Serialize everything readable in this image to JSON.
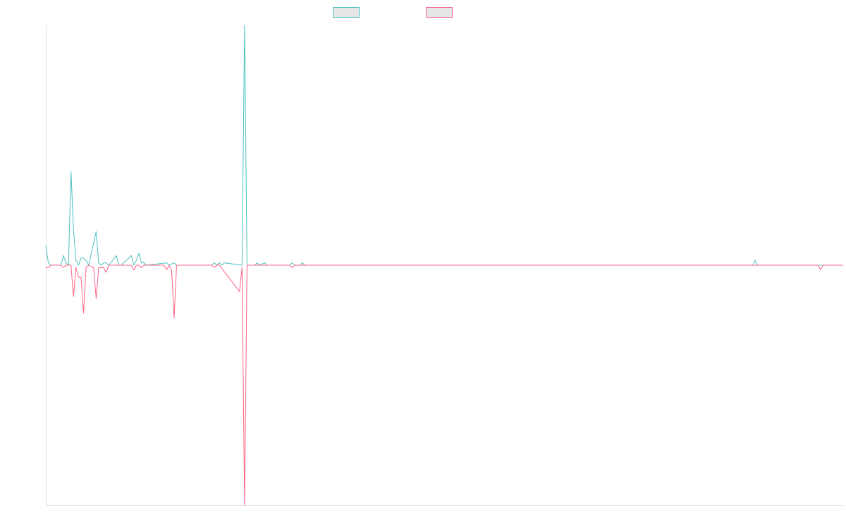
{
  "chart_data": {
    "type": "line",
    "title": "",
    "xlabel": "",
    "ylabel": "",
    "grid": false,
    "legend_position": "top-center",
    "ylim": [
      -100,
      100
    ],
    "colors": {
      "series_a": "#4bc0c0",
      "series_b": "#ff6384",
      "axis": "#e0e0e0",
      "legend_fill": "#e6e6e6"
    },
    "series": [
      {
        "color": "#4bc0c0",
        "points": [
          [
            0,
            8
          ],
          [
            1,
            1
          ],
          [
            2,
            0
          ],
          [
            6,
            0
          ],
          [
            7,
            4
          ],
          [
            8,
            1
          ],
          [
            9,
            0
          ],
          [
            10,
            39
          ],
          [
            11,
            15
          ],
          [
            12,
            2
          ],
          [
            13,
            0
          ],
          [
            14,
            3
          ],
          [
            15,
            3
          ],
          [
            16,
            2
          ],
          [
            17,
            0
          ],
          [
            20,
            14
          ],
          [
            21,
            1
          ],
          [
            22,
            0
          ],
          [
            23,
            1
          ],
          [
            24,
            1
          ],
          [
            25,
            0
          ],
          [
            28,
            4
          ],
          [
            29,
            0
          ],
          [
            30,
            0
          ],
          [
            34,
            4
          ],
          [
            35,
            0
          ],
          [
            36,
            2
          ],
          [
            37,
            5
          ],
          [
            38,
            1
          ],
          [
            39,
            1
          ],
          [
            40,
            0
          ],
          [
            48,
            1
          ],
          [
            49,
            0
          ],
          [
            51,
            1
          ],
          [
            52,
            0
          ],
          [
            58,
            0
          ],
          [
            62,
            0
          ],
          [
            66,
            0
          ],
          [
            67,
            1
          ],
          [
            68,
            0
          ],
          [
            69,
            1
          ],
          [
            70,
            0
          ],
          [
            71,
            1
          ],
          [
            78,
            0
          ],
          [
            79,
            100
          ],
          [
            80,
            0
          ],
          [
            83,
            0
          ],
          [
            84,
            1
          ],
          [
            85,
            0
          ],
          [
            87,
            1
          ],
          [
            88,
            0
          ],
          [
            90,
            0
          ],
          [
            97,
            0
          ],
          [
            98,
            1
          ],
          [
            99,
            0
          ],
          [
            101,
            0
          ],
          [
            102,
            1
          ],
          [
            103,
            0
          ],
          [
            110,
            0
          ],
          [
            112,
            0
          ],
          [
            113,
            0
          ],
          [
            118,
            0
          ],
          [
            120,
            0
          ],
          [
            125,
            0
          ],
          [
            130,
            0
          ],
          [
            135,
            0
          ],
          [
            140,
            0
          ],
          [
            145,
            0
          ],
          [
            150,
            0
          ],
          [
            160,
            0
          ],
          [
            170,
            0
          ],
          [
            180,
            0
          ],
          [
            200,
            0
          ],
          [
            220,
            0
          ],
          [
            250,
            0
          ],
          [
            270,
            0
          ],
          [
            281,
            0
          ],
          [
            282,
            2
          ],
          [
            283,
            0
          ],
          [
            300,
            0
          ],
          [
            315,
            0
          ],
          [
            316,
            0
          ],
          [
            317,
            0
          ]
        ]
      },
      {
        "color": "#ff6384",
        "points": [
          [
            0,
            -1
          ],
          [
            1,
            -1
          ],
          [
            2,
            0
          ],
          [
            6,
            0
          ],
          [
            7,
            -1
          ],
          [
            8,
            0
          ],
          [
            9,
            0
          ],
          [
            10,
            0
          ],
          [
            11,
            -13
          ],
          [
            12,
            -1
          ],
          [
            13,
            -5
          ],
          [
            14,
            -5
          ],
          [
            15,
            -20
          ],
          [
            16,
            -1
          ],
          [
            17,
            0
          ],
          [
            19,
            -1
          ],
          [
            20,
            -14
          ],
          [
            21,
            -1
          ],
          [
            22,
            -1
          ],
          [
            23,
            -1
          ],
          [
            24,
            -3
          ],
          [
            25,
            0
          ],
          [
            29,
            0
          ],
          [
            34,
            0
          ],
          [
            35,
            -2
          ],
          [
            36,
            0
          ],
          [
            37,
            0
          ],
          [
            38,
            -1
          ],
          [
            39,
            0
          ],
          [
            47,
            0
          ],
          [
            48,
            -2
          ],
          [
            49,
            0
          ],
          [
            50,
            -2
          ],
          [
            51,
            -22
          ],
          [
            52,
            0
          ],
          [
            58,
            0
          ],
          [
            62,
            0
          ],
          [
            66,
            0
          ],
          [
            67,
            -1
          ],
          [
            68,
            0
          ],
          [
            69,
            0
          ],
          [
            77,
            -11
          ],
          [
            78,
            -1
          ],
          [
            79,
            -100
          ],
          [
            80,
            0
          ],
          [
            83,
            0
          ],
          [
            88,
            0
          ],
          [
            97,
            0
          ],
          [
            98,
            -1
          ],
          [
            99,
            0
          ],
          [
            112,
            0
          ],
          [
            130,
            0
          ],
          [
            150,
            0
          ],
          [
            170,
            0
          ],
          [
            200,
            0
          ],
          [
            250,
            0
          ],
          [
            300,
            0
          ],
          [
            307,
            0
          ],
          [
            308,
            -2
          ],
          [
            309,
            0
          ],
          [
            317,
            0
          ]
        ]
      }
    ],
    "x_range": [
      0,
      317
    ]
  }
}
